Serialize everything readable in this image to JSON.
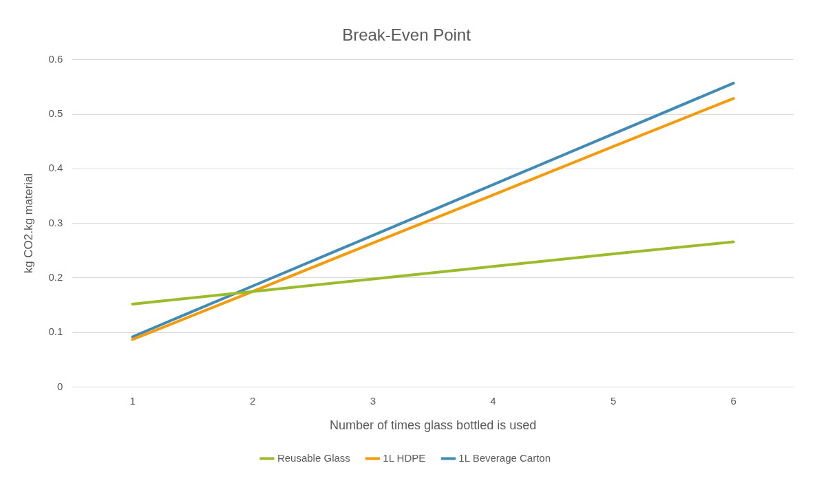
{
  "chart_data": {
    "type": "line",
    "title": "Break-Even Point",
    "xlabel": "Number of times glass bottled is used",
    "ylabel": "kg CO2.kg material",
    "categories": [
      "1",
      "2",
      "3",
      "4",
      "5",
      "6"
    ],
    "series": [
      {
        "name": "Reusable Glass",
        "color": "#9cbb2a",
        "values": [
          0.152,
          0.175,
          0.198,
          0.221,
          0.244,
          0.266
        ]
      },
      {
        "name": "1L HDPE",
        "color": "#f79a0a",
        "values": [
          0.087,
          0.175,
          0.264,
          0.352,
          0.441,
          0.529
        ]
      },
      {
        "name": "1L Beverage Carton",
        "color": "#3f8bb5",
        "values": [
          0.092,
          0.185,
          0.278,
          0.371,
          0.464,
          0.557
        ]
      }
    ],
    "ylim": [
      0,
      0.6
    ],
    "yticks": [
      0,
      0.1,
      0.2,
      0.3,
      0.4,
      0.5,
      0.6
    ],
    "grid": "y",
    "legend": "bottom",
    "marker": "none",
    "line_style": "solid"
  }
}
